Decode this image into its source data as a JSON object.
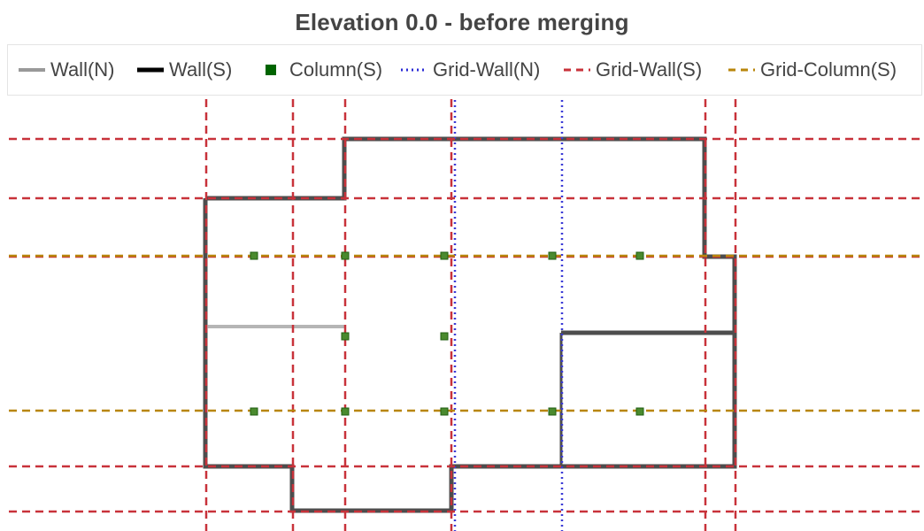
{
  "title": "Elevation 0.0 - before merging",
  "legend": [
    {
      "label": "Wall(N)",
      "style": "solid",
      "color": "#999999"
    },
    {
      "label": "Wall(S)",
      "style": "solid",
      "color": "#000000"
    },
    {
      "label": "Column(S)",
      "style": "square",
      "color": "#006400"
    },
    {
      "label": "Grid-Wall(N)",
      "style": "dotted",
      "color": "#2b2bd6"
    },
    {
      "label": "Grid-Wall(S)",
      "style": "dashed",
      "color": "#c8323a"
    },
    {
      "label": "Grid-Column(S)",
      "style": "dashed",
      "color": "#b8860b"
    }
  ],
  "colors": {
    "wall_n": "#b5b5b5",
    "wall_s": "#4d4d4d",
    "column": "#4a8a2e",
    "column_edge": "#1f5e10",
    "grid_wall_n": "#3a3ad6",
    "grid_wall_s": "#c8323a",
    "grid_column": "#b8860b"
  }
}
